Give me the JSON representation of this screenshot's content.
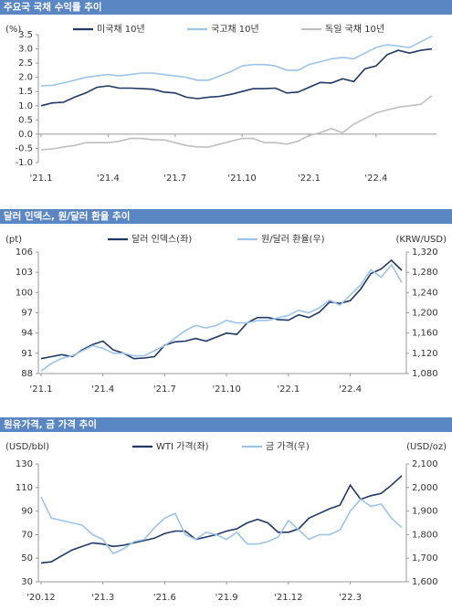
{
  "chart_data": [
    {
      "type": "line",
      "title": "주요국 국채 수익률 추이",
      "y_label": "(%)",
      "categories": [
        "'21.1",
        null,
        null,
        null,
        null,
        null,
        "'21.4",
        null,
        null,
        null,
        null,
        null,
        "'21.7",
        null,
        null,
        null,
        null,
        null,
        "'21.10",
        null,
        null,
        null,
        null,
        null,
        "'22.1",
        null,
        null,
        null,
        null,
        null,
        "'22.4",
        null,
        null,
        null,
        null,
        null
      ],
      "series": [
        {
          "name": "미국채 10년",
          "color": "#1f3864",
          "values": [
            1.0,
            1.1,
            1.12,
            1.3,
            1.45,
            1.65,
            1.7,
            1.62,
            1.62,
            1.6,
            1.58,
            1.48,
            1.45,
            1.3,
            1.25,
            1.3,
            1.33,
            1.4,
            1.5,
            1.6,
            1.6,
            1.62,
            1.45,
            1.48,
            1.65,
            1.82,
            1.8,
            1.95,
            1.85,
            2.3,
            2.4,
            2.8,
            2.95,
            2.85,
            2.95,
            3.0
          ]
        },
        {
          "name": "국고채 10년",
          "color": "#9dc3e6",
          "values": [
            1.7,
            1.72,
            1.8,
            1.9,
            2.0,
            2.05,
            2.1,
            2.05,
            2.1,
            2.15,
            2.15,
            2.1,
            2.05,
            2.0,
            1.9,
            1.9,
            2.05,
            2.2,
            2.4,
            2.45,
            2.45,
            2.4,
            2.25,
            2.25,
            2.45,
            2.55,
            2.65,
            2.7,
            2.65,
            2.85,
            3.05,
            3.15,
            3.1,
            3.05,
            3.25,
            3.45
          ]
        },
        {
          "name": "독일 국채 10년",
          "color": "#bfbfbf",
          "values": [
            -0.55,
            -0.52,
            -0.45,
            -0.4,
            -0.3,
            -0.3,
            -0.3,
            -0.25,
            -0.15,
            -0.15,
            -0.2,
            -0.2,
            -0.3,
            -0.4,
            -0.45,
            -0.45,
            -0.35,
            -0.25,
            -0.15,
            -0.15,
            -0.3,
            -0.3,
            -0.35,
            -0.25,
            -0.05,
            0.05,
            0.2,
            0.05,
            0.35,
            0.55,
            0.75,
            0.85,
            0.95,
            1.0,
            1.05,
            1.35
          ]
        }
      ],
      "ylim": [
        -1.0,
        3.5
      ],
      "yticks": [
        {
          "value": -1,
          "label": "-1.0"
        },
        -0.5,
        {
          "value": 0,
          "label": "0.0"
        },
        0.5,
        {
          "value": 1,
          "label": "1.0"
        },
        1.5,
        {
          "value": 2,
          "label": "2.0"
        },
        2.5,
        {
          "value": 3,
          "label": "3.0"
        },
        3.5
      ]
    },
    {
      "type": "line",
      "title": "달러 인덱스, 원/달러 환율 추이",
      "y_label": "(pt)",
      "y2_label": "(KRW/USD)",
      "categories": [
        "'21.1",
        null,
        null,
        null,
        null,
        null,
        "'21.4",
        null,
        null,
        null,
        null,
        null,
        "'21.7",
        null,
        null,
        null,
        null,
        null,
        "'21.10",
        null,
        null,
        null,
        null,
        null,
        "'22.1",
        null,
        null,
        null,
        null,
        null,
        "'22.4",
        null,
        null,
        null,
        null,
        null
      ],
      "series": [
        {
          "name": "달러 인덱스(좌)",
          "color": "#1f3864",
          "values": [
            90.2,
            90.5,
            90.8,
            90.5,
            91.5,
            92.3,
            92.8,
            91.5,
            91.0,
            90.2,
            90.3,
            90.5,
            92.2,
            92.7,
            92.8,
            93.2,
            92.8,
            93.4,
            94.0,
            93.8,
            95.5,
            96.3,
            96.3,
            96.0,
            95.9,
            96.7,
            96.3,
            97.1,
            98.6,
            98.4,
            98.8,
            100.5,
            102.8,
            103.5,
            104.8,
            103.3
          ]
        },
        {
          "name": "원/달러 환율(우)",
          "color": "#9dc3e6",
          "axis": "y2",
          "values": [
            1085,
            1100,
            1110,
            1115,
            1125,
            1135,
            1130,
            1120,
            1120,
            1115,
            1115,
            1125,
            1135,
            1150,
            1165,
            1175,
            1170,
            1175,
            1185,
            1180,
            1180,
            1185,
            1185,
            1190,
            1195,
            1205,
            1200,
            1210,
            1225,
            1215,
            1235,
            1255,
            1285,
            1270,
            1295,
            1260
          ]
        }
      ],
      "ylim": [
        88,
        106
      ],
      "yticks": [
        88,
        91,
        94,
        97,
        100,
        103,
        106
      ],
      "y2lim": [
        1080,
        1320
      ],
      "y2ticks": [
        {
          "value": 1080,
          "label": "1,080"
        },
        {
          "value": 1120,
          "label": "1,120"
        },
        {
          "value": 1160,
          "label": "1,160"
        },
        {
          "value": 1200,
          "label": "1,200"
        },
        {
          "value": 1240,
          "label": "1,240"
        },
        {
          "value": 1280,
          "label": "1,280"
        },
        {
          "value": 1320,
          "label": "1,320"
        }
      ]
    },
    {
      "type": "line",
      "title": "원유가격, 금 가격 추이",
      "y_label": "(USD/bbl)",
      "y2_label": "(USD/oz)",
      "categories": [
        "'20.12",
        null,
        null,
        null,
        null,
        null,
        "'21.3",
        null,
        null,
        null,
        null,
        null,
        "'21.6",
        null,
        null,
        null,
        null,
        null,
        "'21.9",
        null,
        null,
        null,
        null,
        null,
        "'21.12",
        null,
        null,
        null,
        null,
        null,
        "'22.3",
        null,
        null,
        null,
        null,
        null
      ],
      "series": [
        {
          "name": "WTI 가격(좌)",
          "color": "#1f3864",
          "values": [
            46,
            47,
            52,
            57,
            60,
            63,
            62,
            60,
            61,
            63,
            65,
            67,
            71,
            73,
            73,
            66,
            68,
            70,
            73,
            75,
            80,
            83,
            80,
            72,
            72,
            75,
            84,
            88,
            92,
            95,
            112,
            100,
            103,
            105,
            112,
            120
          ]
        },
        {
          "name": "금 가격(우)",
          "color": "#9dc3e6",
          "axis": "y2",
          "values": [
            1960,
            1870,
            1860,
            1850,
            1840,
            1800,
            1780,
            1720,
            1740,
            1770,
            1780,
            1830,
            1870,
            1890,
            1800,
            1780,
            1810,
            1800,
            1780,
            1810,
            1760,
            1760,
            1770,
            1790,
            1860,
            1820,
            1780,
            1800,
            1800,
            1820,
            1900,
            1950,
            1920,
            1930,
            1870,
            1830
          ]
        }
      ],
      "ylim": [
        30,
        130
      ],
      "yticks": [
        30,
        50,
        70,
        90,
        110,
        130
      ],
      "y2lim": [
        1600,
        2100
      ],
      "y2ticks": [
        {
          "value": 1600,
          "label": "1,600"
        },
        {
          "value": 1700,
          "label": "1,700"
        },
        {
          "value": 1800,
          "label": "1,800"
        },
        {
          "value": 1900,
          "label": "1,900"
        },
        {
          "value": 2000,
          "label": "2,000"
        },
        {
          "value": 2100,
          "label": "2,100"
        }
      ]
    }
  ]
}
